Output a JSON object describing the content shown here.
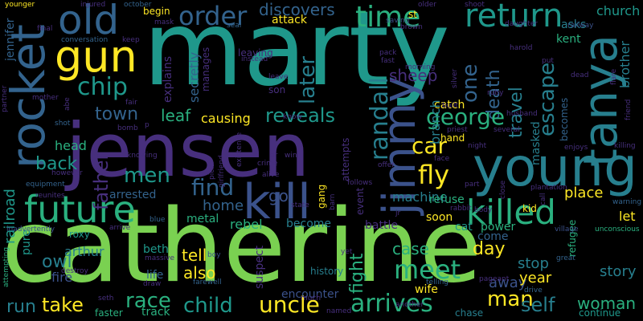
{
  "words": {
    "marty": "marty",
    "catherine": "catherine",
    "jensen": "jensen",
    "young": "young",
    "tanya": "tanya",
    "kill": "kill",
    "rocket": "rocket",
    "jimmy": "jimmy",
    "gun": "gun",
    "old": "old",
    "future": "future",
    "killed": "killed",
    "return": "return",
    "time": "time",
    "order": "order",
    "car": "car",
    "fly": "fly",
    "find": "find",
    "randall": "randall",
    "meet": "meet",
    "arrives": "arrives",
    "uncle": "uncle",
    "child": "child",
    "race": "race",
    "take": "take",
    "run": "run",
    "man": "man",
    "self": "self",
    "woman": "woman",
    "death": "death",
    "george": "george",
    "escape": "escape",
    "travel": "travel",
    "chip": "chip",
    "town": "town",
    "later": "later",
    "reveals": "reveals",
    "one": "one",
    "back": "back",
    "men": "men",
    "father": "father",
    "owl": "owl",
    "home": "home",
    "tell": "tell",
    "also": "also",
    "fight": "fight",
    "place": "place",
    "discovers": "discovers",
    "leaf": "leaf",
    "causing": "causing",
    "sheep": "sheep",
    "railroad": "railroad",
    "head": "head",
    "go": "go",
    "case": "case",
    "day": "day",
    "away": "away",
    "stop": "stop",
    "year": "year",
    "story": "story",
    "brother": "brother",
    "church": "church",
    "let": "let",
    "catch": "catch",
    "branch": "branch",
    "arrested": "arrested",
    "metal": "metal",
    "rebel": "rebel",
    "become": "become",
    "machine": "machine",
    "refuse": "refuse",
    "soon": "soon",
    "power": "power",
    "come": "come",
    "arthur": "arthur",
    "beth": "beth",
    "life": "life",
    "fire": "fire",
    "pure": "pure",
    "jennifer": "jennifer",
    "secretly": "secretly",
    "explains": "explains",
    "leaving": "leaving",
    "son": "son",
    "attack": "attack",
    "begin": "begin",
    "asks": "asks",
    "kent": "kent",
    "masked": "masked",
    "becomes": "becomes",
    "continue": "continue",
    "refugee": "refugee",
    "faster": "faster",
    "track": "track",
    "chase": "chase",
    "wife": "wife",
    "encounter": "encounter",
    "suspect": "suspect",
    "history": "history",
    "hand": "hand",
    "kid": "kid",
    "cat": "cat",
    "battle": "battle",
    "event": "event",
    "attempts": "attempts",
    "gang": "gang",
    "roxy": "roxy",
    "manages": "manages",
    "st": "st",
    "younger": "younger",
    "injured": "injured",
    "october": "october",
    "mask": "mask",
    "seal": "seal",
    "conversation": "conversation",
    "equipment": "equipment",
    "inadvertently": "inadvertently",
    "attempting": "attempting",
    "killing": "killing",
    "village": "village",
    "unconscious": "unconscious",
    "plantation": "plantation",
    "saving": "saving",
    "shoot": "shoot",
    "railway": "railway",
    "daughter": "daughter",
    "instead": "instead",
    "morning": "morning",
    "husband": "husband",
    "several": "several",
    "night": "night",
    "enjoys": "enjoys",
    "knowing": "knowing",
    "however": "however",
    "reunites": "reunites",
    "arrive": "arrive",
    "blue": "blue",
    "boy": "boy",
    "massive": "massive",
    "destroy": "destroy",
    "draw": "draw",
    "farewell": "farewell",
    "pageant": "pageant",
    "telling": "telling",
    "drive": "drive",
    "great": "great",
    "warning": "warning",
    "bomb": "bomb",
    "shot": "shot",
    "mother": "mother",
    "fair": "fair",
    "abe": "abe",
    "pick": "pick",
    "girlfriend": "girlfriend",
    "existence": "existence",
    "crime": "crime",
    "alive": "alive",
    "dr": "dr",
    "win": "win",
    "offer": "offer",
    "follows": "follows",
    "state": "state",
    "barn": "barn",
    "rabbit": "rabbit",
    "face": "face",
    "body": "body",
    "part": "part",
    "priest": "priest",
    "built": "built",
    "silver": "silver",
    "ruby": "ruby",
    "dead": "dead",
    "put": "put",
    "harold": "harold",
    "friend": "friend",
    "final": "final",
    "keep": "keep",
    "brown": "brown",
    "know": "know",
    "pack": "pack",
    "fast": "fast",
    "leave": "leave",
    "seth": "seth",
    "named": "named",
    "much": "much",
    "yet": "yet",
    "jr": "jr",
    "close": "close",
    "call": "call",
    "older": "older",
    "p": "p",
    "partner": "partner",
    "flare": "flare",
    "another": "another"
  },
  "palette": [
    "#7ad151",
    "#2ab07f",
    "#1f988b",
    "#277f8e",
    "#33638d",
    "#3b528b",
    "#472f7d",
    "#440154",
    "#fde725"
  ]
}
